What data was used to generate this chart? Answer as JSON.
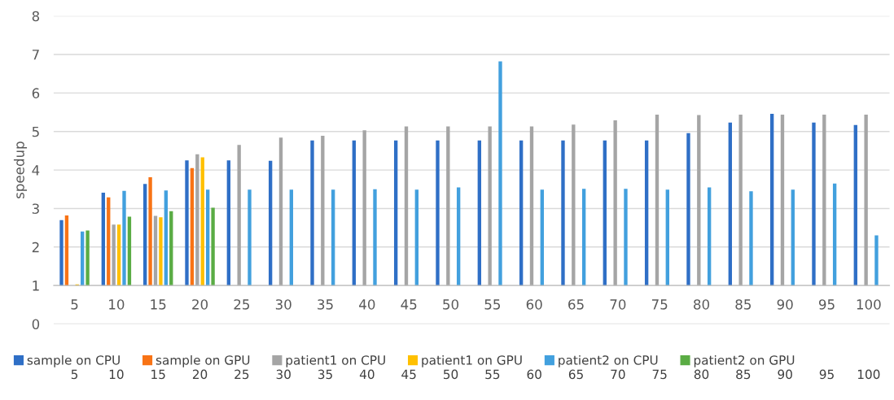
{
  "chart_data": {
    "type": "bar",
    "ylabel": "speedup",
    "categories": [
      "5",
      "10",
      "15",
      "20",
      "25",
      "30",
      "35",
      "40",
      "45",
      "50",
      "55",
      "60",
      "65",
      "70",
      "75",
      "80",
      "85",
      "90",
      "95",
      "100"
    ],
    "series": [
      {
        "name": "sample on CPU",
        "color": "#2f6fc6",
        "base": [
          1,
          1,
          1,
          1,
          1,
          1,
          1,
          1,
          1,
          1,
          1,
          1,
          1,
          1,
          1,
          1,
          1,
          1,
          1,
          1
        ],
        "values": [
          1.7,
          2.41,
          2.64,
          3.25,
          3.25,
          3.24,
          3.77,
          3.77,
          3.77,
          3.77,
          3.77,
          3.77,
          3.77,
          3.77,
          3.77,
          3.96,
          4.23,
          4.46,
          4.23,
          4.17
        ]
      },
      {
        "name": "sample on GPU",
        "color": "#f87315",
        "base": [
          1,
          1,
          1,
          1,
          null,
          null,
          null,
          null,
          null,
          null,
          null,
          null,
          null,
          null,
          null,
          null,
          null,
          null,
          null,
          null
        ],
        "values": [
          1.82,
          2.29,
          2.81,
          3.05,
          null,
          null,
          null,
          null,
          null,
          null,
          null,
          null,
          null,
          null,
          null,
          null,
          null,
          null,
          null,
          null
        ]
      },
      {
        "name": "patient1 on CPU",
        "color": "#a5a5a5",
        "base": [
          null,
          1,
          1,
          1,
          1,
          1,
          1,
          1,
          1,
          1,
          1,
          1,
          1,
          1,
          1,
          1,
          1,
          1,
          1,
          1
        ],
        "values": [
          null,
          1.58,
          1.81,
          3.41,
          3.65,
          3.84,
          3.89,
          4.03,
          4.13,
          4.13,
          4.13,
          4.13,
          4.18,
          4.29,
          4.44,
          4.43,
          4.44,
          4.44,
          4.44,
          4.44
        ]
      },
      {
        "name": "patient1 on GPU",
        "color": "#ffc000",
        "base": [
          1,
          1,
          1,
          1,
          null,
          null,
          null,
          null,
          null,
          null,
          null,
          null,
          null,
          null,
          null,
          null,
          null,
          null,
          null,
          null
        ],
        "values": [
          0.03,
          1.58,
          1.77,
          3.33,
          null,
          null,
          null,
          null,
          null,
          null,
          null,
          null,
          null,
          null,
          null,
          null,
          null,
          null,
          null,
          null
        ]
      },
      {
        "name": "patient2 on CPU",
        "color": "#42a0de",
        "base": [
          1,
          1,
          1,
          1,
          1,
          1,
          1,
          1,
          1,
          1,
          1,
          1,
          1,
          1,
          1,
          1,
          1,
          1,
          1,
          1
        ],
        "values": [
          1.4,
          2.46,
          2.47,
          2.49,
          2.49,
          2.49,
          2.49,
          2.5,
          2.49,
          2.55,
          5.82,
          2.49,
          2.51,
          2.51,
          2.49,
          2.55,
          2.45,
          2.49,
          2.65,
          1.3
        ]
      },
      {
        "name": "patient2 on GPU",
        "color": "#5aac44",
        "base": [
          1,
          1,
          1,
          1,
          null,
          null,
          null,
          null,
          null,
          null,
          null,
          null,
          null,
          null,
          null,
          null,
          null,
          null,
          null,
          null
        ],
        "values": [
          1.43,
          1.79,
          1.93,
          2.02,
          null,
          null,
          null,
          null,
          null,
          null,
          null,
          null,
          null,
          null,
          null,
          null,
          null,
          null,
          null,
          null
        ]
      }
    ],
    "ylim": [
      0,
      8
    ],
    "yticks": [
      0,
      1,
      2,
      3,
      4,
      5,
      6,
      7,
      8
    ],
    "grid": "y",
    "legend": "bottom"
  }
}
